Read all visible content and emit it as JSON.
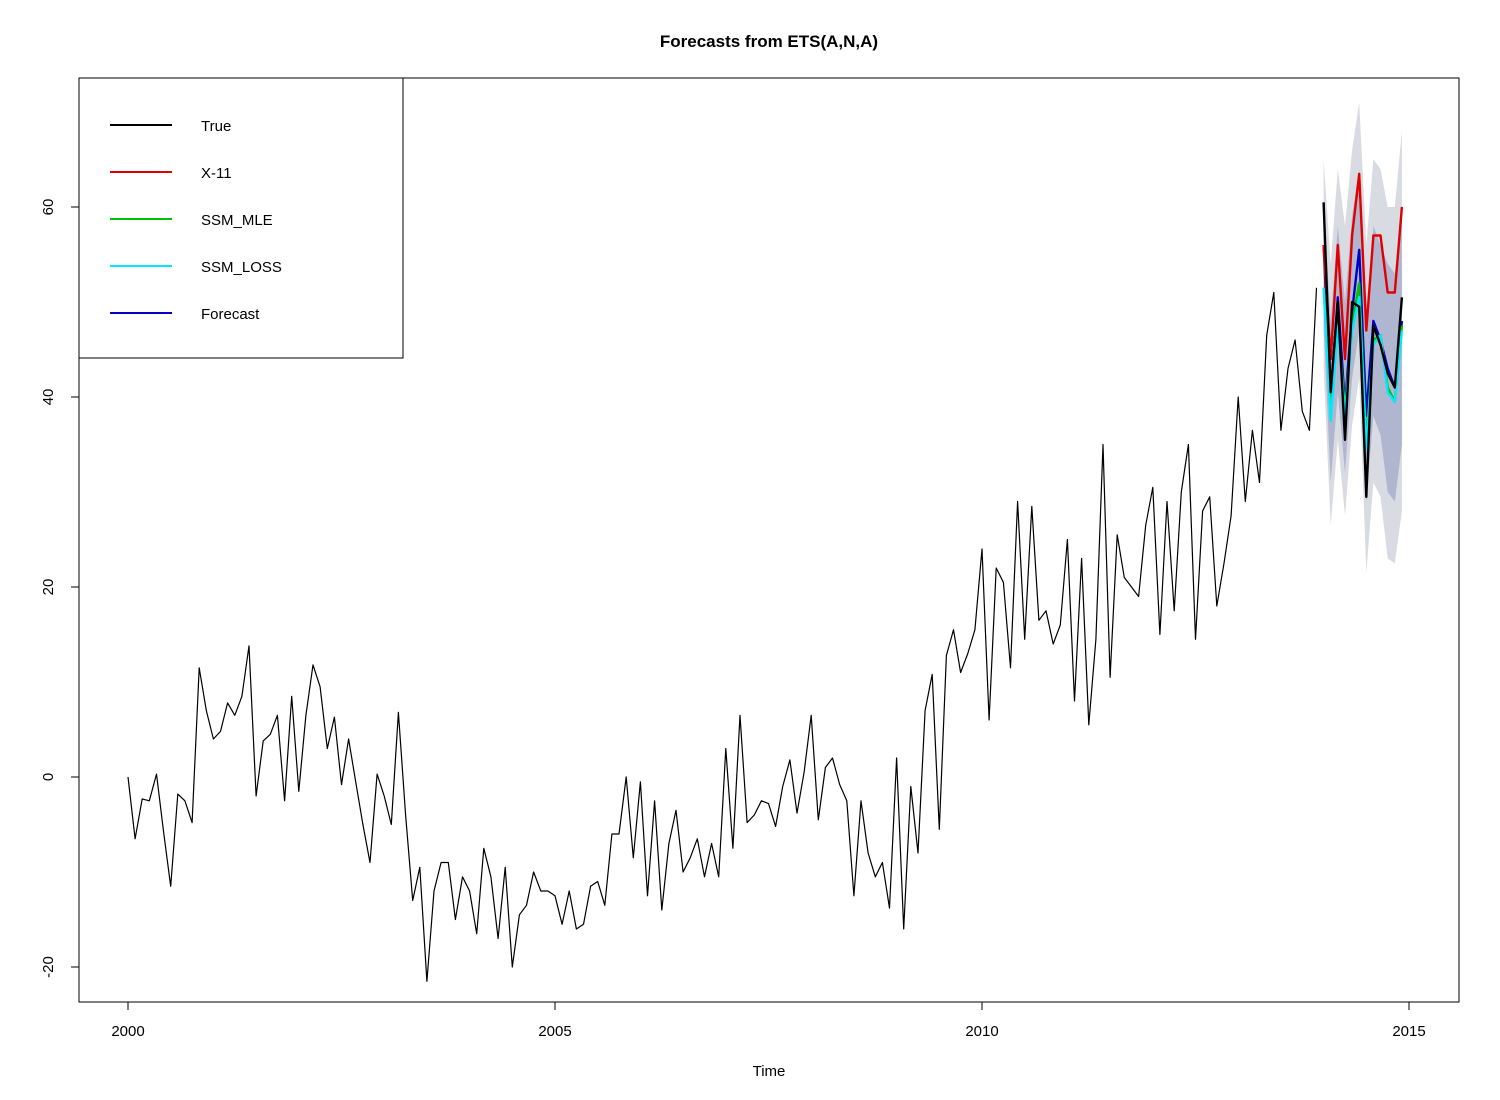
{
  "chart_data": {
    "type": "line",
    "title": "Forecasts from ETS(A,N,A)",
    "xlabel": "Time",
    "ylabel": "",
    "xlim": [
      2000,
      2015
    ],
    "ylim": [
      -23.5,
      73
    ],
    "x_ticks": [
      {
        "value": 2000,
        "label": "2000"
      },
      {
        "value": 2005,
        "label": "2005"
      },
      {
        "value": 2010,
        "label": "2010"
      },
      {
        "value": 2015,
        "label": "2015"
      }
    ],
    "y_ticks": [
      {
        "value": -20,
        "label": "-20"
      },
      {
        "value": 0,
        "label": "0"
      },
      {
        "value": 20,
        "label": "20"
      },
      {
        "value": 40,
        "label": "40"
      },
      {
        "value": 60,
        "label": "60"
      }
    ],
    "grid": false,
    "legend_position": "top-left",
    "legend": [
      {
        "label": "True",
        "color": "#000000"
      },
      {
        "label": "X-11",
        "color": "#e00000"
      },
      {
        "label": "SSM_MLE",
        "color": "#00c000"
      },
      {
        "label": "SSM_LOSS",
        "color": "#00e8ff"
      },
      {
        "label": "Forecast",
        "color": "#0000c8"
      }
    ],
    "history": {
      "start": 2000,
      "frequency": 12,
      "color": "#000000",
      "values": [
        0.0,
        -6.5,
        -2.3,
        -2.5,
        0.3,
        -5.8,
        -11.5,
        -1.8,
        -2.5,
        -4.8,
        11.5,
        7.0,
        4.0,
        4.8,
        7.8,
        6.5,
        8.5,
        13.8,
        -2.0,
        3.8,
        4.5,
        6.5,
        -2.5,
        8.5,
        -1.5,
        6.5,
        11.8,
        9.5,
        3.0,
        6.3,
        -0.8,
        4.0,
        -0.5,
        -5.0,
        -9.0,
        0.3,
        -2.0,
        -5.0,
        6.8,
        -4.0,
        -13.0,
        -9.5,
        -21.5,
        -12.0,
        -9.0,
        -9.0,
        -15.0,
        -10.5,
        -12.0,
        -16.5,
        -7.5,
        -10.5,
        -17.0,
        -9.5,
        -20.0,
        -14.5,
        -13.5,
        -10.0,
        -12.0,
        -12.0,
        -12.5,
        -15.5,
        -12.0,
        -16.0,
        -15.5,
        -11.5,
        -11.0,
        -13.5,
        -6.0,
        -6.0,
        0.0,
        -8.5,
        -0.5,
        -12.5,
        -2.5,
        -14.0,
        -7.0,
        -3.5,
        -10.0,
        -8.5,
        -6.5,
        -10.5,
        -7.0,
        -10.5,
        3.0,
        -7.5,
        6.5,
        -4.8,
        -4.0,
        -2.5,
        -2.8,
        -5.2,
        -1.0,
        1.8,
        -3.8,
        0.5,
        6.5,
        -4.5,
        1.0,
        2.0,
        -0.8,
        -2.5,
        -12.5,
        -2.5,
        -8.0,
        -10.5,
        -9.0,
        -13.8,
        2.0,
        -16.0,
        -1.0,
        -8.0,
        7.0,
        10.8,
        -5.5,
        12.8,
        15.5,
        11.0,
        13.0,
        15.5,
        24.0,
        6.0,
        22.0,
        20.5,
        11.5,
        29.0,
        14.5,
        28.5,
        16.5,
        17.5,
        14.0,
        16.0,
        25.0,
        8.0,
        23.0,
        5.5,
        14.5,
        35.0,
        10.5,
        25.5,
        21.0,
        20.0,
        19.0,
        26.5,
        30.5,
        15.0,
        29.0,
        17.5,
        30.0,
        35.0,
        14.5,
        28.0,
        29.5,
        18.0,
        22.5,
        27.5,
        40.0,
        29.0,
        36.5,
        31.0,
        46.5,
        51.0,
        36.5,
        43.0,
        46.0,
        38.5,
        36.5,
        51.5
      ]
    },
    "forecast": {
      "start": 2014,
      "frequency": 12,
      "series": [
        {
          "name": "Forecast",
          "color": "#0000c8",
          "values": [
            56.0,
            40.0,
            50.5,
            39.0,
            49.0,
            55.5,
            38.0,
            48.0,
            46.0,
            43.0,
            41.0,
            48.0
          ]
        },
        {
          "name": "SSM_MLE",
          "color": "#00c000",
          "values": [
            51.5,
            39.5,
            48.0,
            38.5,
            47.5,
            52.0,
            35.0,
            46.0,
            46.5,
            41.0,
            39.5,
            47.5
          ]
        },
        {
          "name": "SSM_LOSS",
          "color": "#00e8ff",
          "values": [
            51.5,
            37.5,
            47.5,
            38.0,
            47.0,
            50.5,
            34.5,
            45.5,
            46.5,
            40.5,
            39.5,
            47.0
          ]
        },
        {
          "name": "X-11",
          "color": "#e00000",
          "values": [
            56.0,
            44.0,
            56.0,
            44.0,
            57.0,
            63.5,
            47.0,
            57.0,
            57.0,
            51.0,
            51.0,
            60.0
          ]
        },
        {
          "name": "True",
          "color": "#000000",
          "values": [
            60.5,
            40.5,
            50.0,
            35.5,
            50.0,
            49.5,
            29.5,
            47.5,
            45.5,
            42.5,
            41.0,
            50.5
          ]
        }
      ],
      "pi80": {
        "color": "#b0b6cf",
        "lower": [
          47.5,
          31.0,
          40.5,
          32.0,
          42.0,
          47.0,
          29.0,
          38.0,
          36.0,
          30.0,
          29.0,
          35.0
        ],
        "upper": [
          60.5,
          48.0,
          58.0,
          50.0,
          59.0,
          64.0,
          48.0,
          58.0,
          56.0,
          54.0,
          53.0,
          59.0
        ]
      },
      "pi95": {
        "color": "#d9dbe2",
        "lower": [
          43.0,
          26.5,
          35.5,
          27.5,
          37.0,
          42.0,
          21.5,
          31.0,
          29.5,
          23.0,
          22.5,
          28.0
        ],
        "upper": [
          65.0,
          54.0,
          64.0,
          58.0,
          66.0,
          71.0,
          56.0,
          65.0,
          64.0,
          60.0,
          60.0,
          68.0
        ]
      }
    }
  }
}
